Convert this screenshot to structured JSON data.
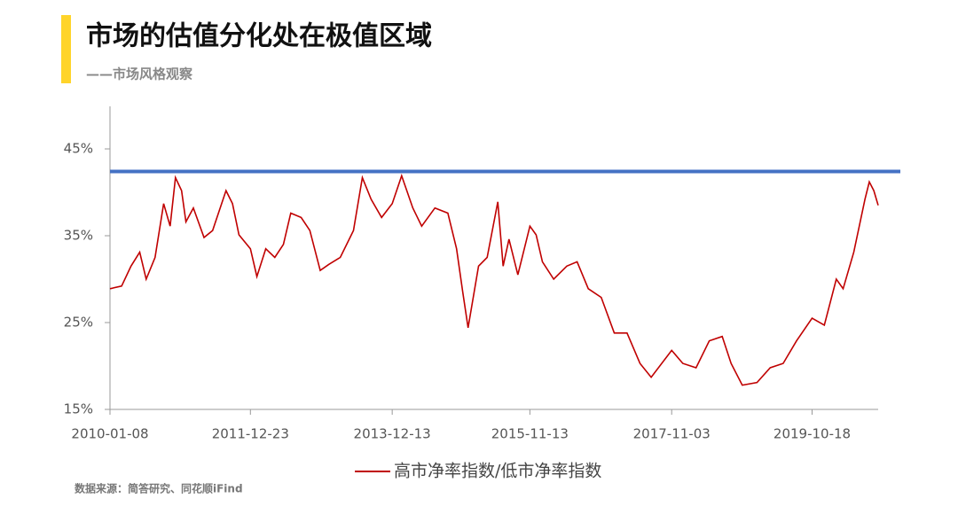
{
  "chart_data": {
    "type": "line",
    "title": "市场的估值分化处在极值区域",
    "subtitle": "——市场风格观察",
    "source": "数据来源：简答研究、同花顺iFind",
    "x": [
      "2010-01-08",
      "2010-03-08",
      "2010-04-25",
      "2010-06-08",
      "2010-07-11",
      "2010-08-25",
      "2010-10-08",
      "2010-11-10",
      "2010-12-07",
      "2011-01-07",
      "2011-01-29",
      "2011-03-08",
      "2011-05-01",
      "2011-06-14",
      "2011-08-21",
      "2011-09-23",
      "2011-10-26",
      "2011-12-23",
      "2012-01-25",
      "2012-03-10",
      "2012-04-25",
      "2012-06-08",
      "2012-07-15",
      "2012-09-06",
      "2012-10-20",
      "2012-12-12",
      "2013-01-25",
      "2013-03-24",
      "2013-05-30",
      "2013-07-14",
      "2013-08-28",
      "2013-10-20",
      "2013-12-13",
      "2014-01-30",
      "2014-03-28",
      "2014-05-12",
      "2014-07-18",
      "2014-09-22",
      "2014-11-05",
      "2014-12-07",
      "2015-01-03",
      "2015-02-25",
      "2015-04-10",
      "2015-06-03",
      "2015-06-30",
      "2015-07-30",
      "2015-09-13",
      "2015-11-13",
      "2015-12-15",
      "2016-01-16",
      "2016-03-13",
      "2016-05-19",
      "2016-07-10",
      "2016-09-05",
      "2016-11-10",
      "2017-01-15",
      "2017-03-21",
      "2017-05-26",
      "2017-07-22",
      "2017-11-03",
      "2017-12-30",
      "2018-03-07",
      "2018-05-13",
      "2018-07-18",
      "2018-09-01",
      "2018-10-28",
      "2019-01-11",
      "2019-03-19",
      "2019-05-24",
      "2019-07-31",
      "2019-10-18",
      "2019-12-19",
      "2020-02-18",
      "2020-03-24",
      "2020-05-17",
      "2020-07-13",
      "2020-08-04",
      "2020-08-27",
      "2020-09-18"
    ],
    "series": [
      {
        "name": "高市净率指数/低市净率指数",
        "color": "#c00000",
        "values": [
          28.9,
          29.2,
          31.5,
          33.1,
          30.0,
          32.5,
          38.7,
          36.1,
          41.7,
          40.2,
          36.6,
          38.2,
          34.8,
          35.6,
          40.2,
          38.7,
          35.1,
          33.5,
          30.3,
          33.5,
          32.5,
          34.0,
          37.6,
          37.1,
          35.6,
          31.0,
          31.7,
          32.5,
          35.6,
          41.7,
          39.2,
          37.1,
          38.7,
          41.9,
          38.2,
          36.1,
          38.2,
          37.6,
          33.5,
          28.5,
          24.4,
          31.5,
          32.5,
          38.9,
          31.5,
          34.6,
          30.5,
          36.1,
          35.1,
          32.0,
          30.0,
          31.5,
          32.0,
          28.9,
          27.9,
          23.8,
          23.8,
          20.3,
          18.7,
          21.8,
          20.3,
          19.8,
          22.9,
          23.4,
          20.3,
          17.8,
          18.1,
          19.8,
          20.3,
          22.9,
          25.5,
          24.7,
          30.0,
          28.9,
          33.1,
          39.2,
          41.2,
          40.2,
          38.5
        ]
      }
    ],
    "reference_line": {
      "value": 42.4,
      "color": "#4472c4"
    },
    "xlim": [
      "2010-01-08",
      "2020-09-18"
    ],
    "xticks": [
      "2010-01-08",
      "2011-12-23",
      "2013-12-13",
      "2015-11-13",
      "2017-11-03",
      "2019-10-18"
    ],
    "ylim": [
      15,
      49.9
    ],
    "yticks": [
      {
        "value": 15,
        "label": "15%"
      },
      {
        "value": 25,
        "label": "25%"
      },
      {
        "value": 35,
        "label": "35%"
      },
      {
        "value": 45,
        "label": "45%"
      }
    ]
  }
}
